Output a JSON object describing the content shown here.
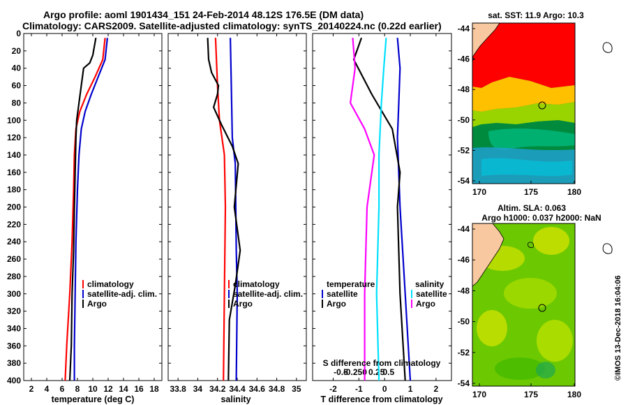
{
  "title": {
    "line1": "Argo profile: aoml 1901434_151 24-Feb-2014 48.12S 176.5E (DM data)",
    "line2": "Climatology: CARS2009. Satellite-adjusted climatology: synTS_20140224.nc (0.22d earlier)"
  },
  "colors": {
    "climatology": "#ff0000",
    "satellite": "#0000cc",
    "argo": "#000000",
    "s_satellite": "#00e0ff",
    "s_climatology": "#ff00ff"
  },
  "chart_data": [
    {
      "type": "line",
      "name": "temperature-profile",
      "xlabel": "temperature (deg C)",
      "ylabel": "depth",
      "xlim": [
        1,
        19
      ],
      "ylim": [
        400,
        0
      ],
      "xticks": [
        2,
        4,
        6,
        8,
        10,
        12,
        14,
        16,
        18
      ],
      "yticks": [
        0,
        20,
        40,
        60,
        80,
        100,
        120,
        140,
        160,
        180,
        200,
        220,
        240,
        260,
        280,
        300,
        320,
        340,
        360,
        380,
        400
      ],
      "legend": [
        "climatology",
        "satellite-adj. clim.",
        "Argo"
      ],
      "series": [
        {
          "name": "climatology",
          "points": [
            [
              11.6,
              5
            ],
            [
              11.3,
              30
            ],
            [
              10.3,
              50
            ],
            [
              9.2,
              70
            ],
            [
              8.3,
              90
            ],
            [
              7.8,
              110
            ],
            [
              7.6,
              140
            ],
            [
              7.5,
              180
            ],
            [
              7.3,
              240
            ],
            [
              7.0,
              300
            ],
            [
              6.6,
              360
            ],
            [
              6.4,
              400
            ]
          ]
        },
        {
          "name": "satellite-adj. clim.",
          "points": [
            [
              11.9,
              5
            ],
            [
              11.6,
              30
            ],
            [
              10.7,
              50
            ],
            [
              9.8,
              70
            ],
            [
              9.0,
              90
            ],
            [
              8.5,
              110
            ],
            [
              8.2,
              140
            ],
            [
              8.0,
              180
            ],
            [
              7.8,
              240
            ],
            [
              7.7,
              300
            ],
            [
              7.6,
              360
            ],
            [
              7.6,
              400
            ]
          ]
        },
        {
          "name": "Argo",
          "points": [
            [
              10.4,
              5
            ],
            [
              10.0,
              25
            ],
            [
              9.6,
              34
            ],
            [
              8.8,
              40
            ],
            [
              8.2,
              80
            ],
            [
              7.9,
              100
            ],
            [
              7.8,
              120
            ],
            [
              7.6,
              200
            ],
            [
              7.5,
              250
            ],
            [
              7.3,
              300
            ],
            [
              7.2,
              360
            ],
            [
              7.0,
              400
            ]
          ]
        }
      ]
    },
    {
      "type": "line",
      "name": "salinity-profile",
      "xlabel": "salinity",
      "ylabel": "depth",
      "xlim": [
        33.7,
        35.1
      ],
      "ylim": [
        400,
        0
      ],
      "xticks": [
        33.8,
        34,
        34.2,
        34.4,
        34.6,
        34.8,
        35
      ],
      "xticklabels": [
        "33.8",
        "34",
        "34.2",
        "34.4",
        "34.6",
        "34.8",
        "35"
      ],
      "legend": [
        "climatology",
        "satellite-adj. clim.",
        "Argo"
      ],
      "series": [
        {
          "name": "climatology",
          "points": [
            [
              34.18,
              5
            ],
            [
              34.2,
              60
            ],
            [
              34.22,
              100
            ],
            [
              34.27,
              140
            ],
            [
              34.28,
              200
            ],
            [
              34.27,
              300
            ],
            [
              34.26,
              400
            ]
          ]
        },
        {
          "name": "satellite-adj. clim.",
          "points": [
            [
              34.33,
              5
            ],
            [
              34.34,
              60
            ],
            [
              34.35,
              120
            ],
            [
              34.38,
              150
            ],
            [
              34.39,
              250
            ],
            [
              34.4,
              300
            ],
            [
              34.39,
              400
            ]
          ]
        },
        {
          "name": "Argo",
          "points": [
            [
              34.1,
              5
            ],
            [
              34.11,
              30
            ],
            [
              34.14,
              45
            ],
            [
              34.21,
              60
            ],
            [
              34.2,
              70
            ],
            [
              34.16,
              85
            ],
            [
              34.24,
              105
            ],
            [
              34.35,
              130
            ],
            [
              34.41,
              150
            ],
            [
              34.37,
              200
            ],
            [
              34.43,
              250
            ],
            [
              34.38,
              290
            ],
            [
              34.32,
              330
            ],
            [
              34.31,
              400
            ]
          ]
        }
      ]
    },
    {
      "type": "line",
      "name": "difference-profile",
      "xlabel": "T difference from climatology",
      "xlabel2": "S difference from climatology",
      "xlim": [
        -2.8,
        2.6
      ],
      "ylim": [
        400,
        0
      ],
      "xticks": [
        -2,
        -1,
        0,
        1,
        2
      ],
      "xticklabels": [
        "-2",
        "-1",
        "0",
        "1",
        "2"
      ],
      "sticks": [
        -0.5,
        -0.25,
        0,
        0.25,
        0.5
      ],
      "sticklabels": [
        "-0.5",
        "-0.25",
        "0",
        "0.25",
        "0.5"
      ],
      "legend_temperature": {
        "title": "temperature",
        "items": [
          "satellite",
          "Argo"
        ]
      },
      "legend_salinity": {
        "title": "salinity",
        "items": [
          "satellite",
          "Argo"
        ]
      },
      "series": [
        {
          "name": "T satellite",
          "points": [
            [
              0.5,
              5
            ],
            [
              0.6,
              40
            ],
            [
              0.55,
              80
            ],
            [
              0.5,
              120
            ],
            [
              0.6,
              200
            ],
            [
              0.7,
              250
            ],
            [
              0.8,
              300
            ],
            [
              1.0,
              400
            ]
          ]
        },
        {
          "name": "T Argo",
          "points": [
            [
              -0.9,
              5
            ],
            [
              -1.2,
              30
            ],
            [
              -0.5,
              70
            ],
            [
              0.3,
              110
            ],
            [
              0.6,
              160
            ],
            [
              0.5,
              200
            ],
            [
              0.6,
              300
            ],
            [
              0.8,
              400
            ]
          ]
        },
        {
          "name": "S satellite",
          "points": [
            [
              0.45,
              5
            ],
            [
              0.4,
              40
            ],
            [
              0.35,
              80
            ],
            [
              0.3,
              140
            ],
            [
              0.3,
              200
            ],
            [
              0.25,
              300
            ],
            [
              0.3,
              400
            ]
          ]
        },
        {
          "name": "S Argo",
          "points": [
            [
              -0.25,
              5
            ],
            [
              -0.2,
              40
            ],
            [
              -0.3,
              80
            ],
            [
              0.0,
              110
            ],
            [
              0.2,
              140
            ],
            [
              0.05,
              200
            ],
            [
              0.0,
              300
            ],
            [
              0.0,
              400
            ]
          ]
        }
      ]
    }
  ],
  "maps": {
    "sst": {
      "title": "sat. SST: 11.9 Argo: 10.3",
      "yticks": [
        "-44",
        "-46",
        "-48",
        "-50",
        "-52",
        "-54"
      ],
      "xticks": [
        "170",
        "175",
        "180"
      ]
    },
    "sla": {
      "title1": "Altim. SLA: 0.063",
      "title2": "Argo h1000: 0.037 h2000: NaN",
      "yticks": [
        "-44",
        "-46",
        "-48",
        "-50",
        "-52",
        "-54"
      ],
      "xticks": [
        "170",
        "175",
        "180"
      ]
    }
  },
  "credit": "©IMOS 13-Dec-2018 16:04:06"
}
